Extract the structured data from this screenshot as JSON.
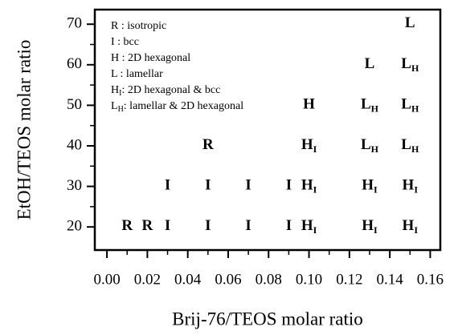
{
  "chart_data": {
    "type": "scatter",
    "xlabel": "Brij-76/TEOS molar ratio",
    "ylabel": "EtOH/TEOS molar ratio",
    "xlim": [
      -0.006,
      0.165
    ],
    "ylim": [
      14.3,
      73.6
    ],
    "xticks": [
      {
        "value": 0,
        "label": "0.00"
      },
      {
        "value": 0.02,
        "label": "0.02"
      },
      {
        "value": 0.04,
        "label": "0.04"
      },
      {
        "value": 0.06,
        "label": "0.06"
      },
      {
        "value": 0.08,
        "label": "0.08"
      },
      {
        "value": 0.1,
        "label": "0.10"
      },
      {
        "value": 0.12,
        "label": "0.12"
      },
      {
        "value": 0.14,
        "label": "0.14"
      },
      {
        "value": 0.16,
        "label": "0.16"
      }
    ],
    "xminorticks": [
      0.01,
      0.03,
      0.05,
      0.07,
      0.09,
      0.11,
      0.13,
      0.15
    ],
    "yticks": [
      20,
      30,
      40,
      50,
      60,
      70
    ],
    "yminorticks": [
      25,
      35,
      45,
      55,
      65
    ],
    "color": "#000000",
    "key": [
      {
        "symbol": "R",
        "subscript": null,
        "description": " : isotropic"
      },
      {
        "symbol": "I",
        "subscript": null,
        "description": " : bcc"
      },
      {
        "symbol": "H",
        "subscript": null,
        "description": " : 2D hexagonal"
      },
      {
        "symbol": "L",
        "subscript": null,
        "description": " : lamellar"
      },
      {
        "symbol": "H",
        "subscript": "I",
        "description": ": 2D hexagonal & bcc"
      },
      {
        "symbol": "L",
        "subscript": "H",
        "description": ": lamellar & 2D hexagonal"
      }
    ],
    "points": {
      "x": [
        0.01,
        0.02,
        0.03,
        0.05,
        0.07,
        0.09,
        0.1,
        0.13,
        0.15,
        0.03,
        0.05,
        0.07,
        0.09,
        0.1,
        0.13,
        0.15,
        0.05,
        0.1,
        0.13,
        0.15,
        0.1,
        0.13,
        0.15,
        0.13,
        0.15,
        0.15
      ],
      "y": [
        20,
        20,
        20,
        20,
        20,
        20,
        20,
        20,
        20,
        30,
        30,
        30,
        30,
        30,
        30,
        30,
        40,
        40,
        40,
        40,
        50,
        50,
        50,
        60,
        60,
        70
      ],
      "labels": [
        "R",
        "R",
        "I",
        "I",
        "I",
        "I",
        "H",
        "H",
        "H",
        "I",
        "I",
        "I",
        "I",
        "H",
        "H",
        "H",
        "R",
        "H",
        "L",
        "L",
        "H",
        "L",
        "L",
        "L",
        "L",
        "L"
      ],
      "subscripts": [
        null,
        null,
        null,
        null,
        null,
        null,
        "I",
        "I",
        "I",
        null,
        null,
        null,
        null,
        "I",
        "I",
        "I",
        null,
        "I",
        "H",
        "H",
        null,
        "H",
        "H",
        null,
        "H",
        null
      ]
    }
  }
}
